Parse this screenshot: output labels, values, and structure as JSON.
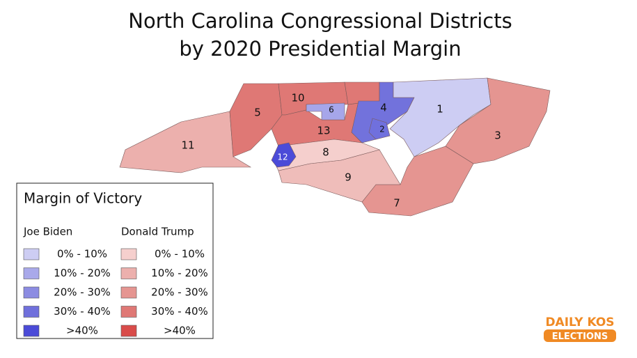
{
  "title": [
    "North Carolina Congressional Districts",
    "by 2020 Presidential Margin"
  ],
  "district_labels": [
    "1",
    "2",
    "3",
    "4",
    "5",
    "6",
    "7",
    "8",
    "9",
    "10",
    "11",
    "12",
    "13"
  ],
  "legend": {
    "title": "Margin of Victory",
    "columns": [
      {
        "heading": "Joe Biden",
        "items": [
          "0% - 10%",
          "10% - 20%",
          "20% - 30%",
          "30% - 40%",
          ">40%"
        ]
      },
      {
        "heading": "Donald Trump",
        "items": [
          "0% - 10%",
          "10% - 20%",
          "20% - 30%",
          "30% - 40%",
          ">40%"
        ]
      }
    ]
  },
  "logo": {
    "line1": "DAILY KOS",
    "line2": "ELECTIONS"
  }
}
